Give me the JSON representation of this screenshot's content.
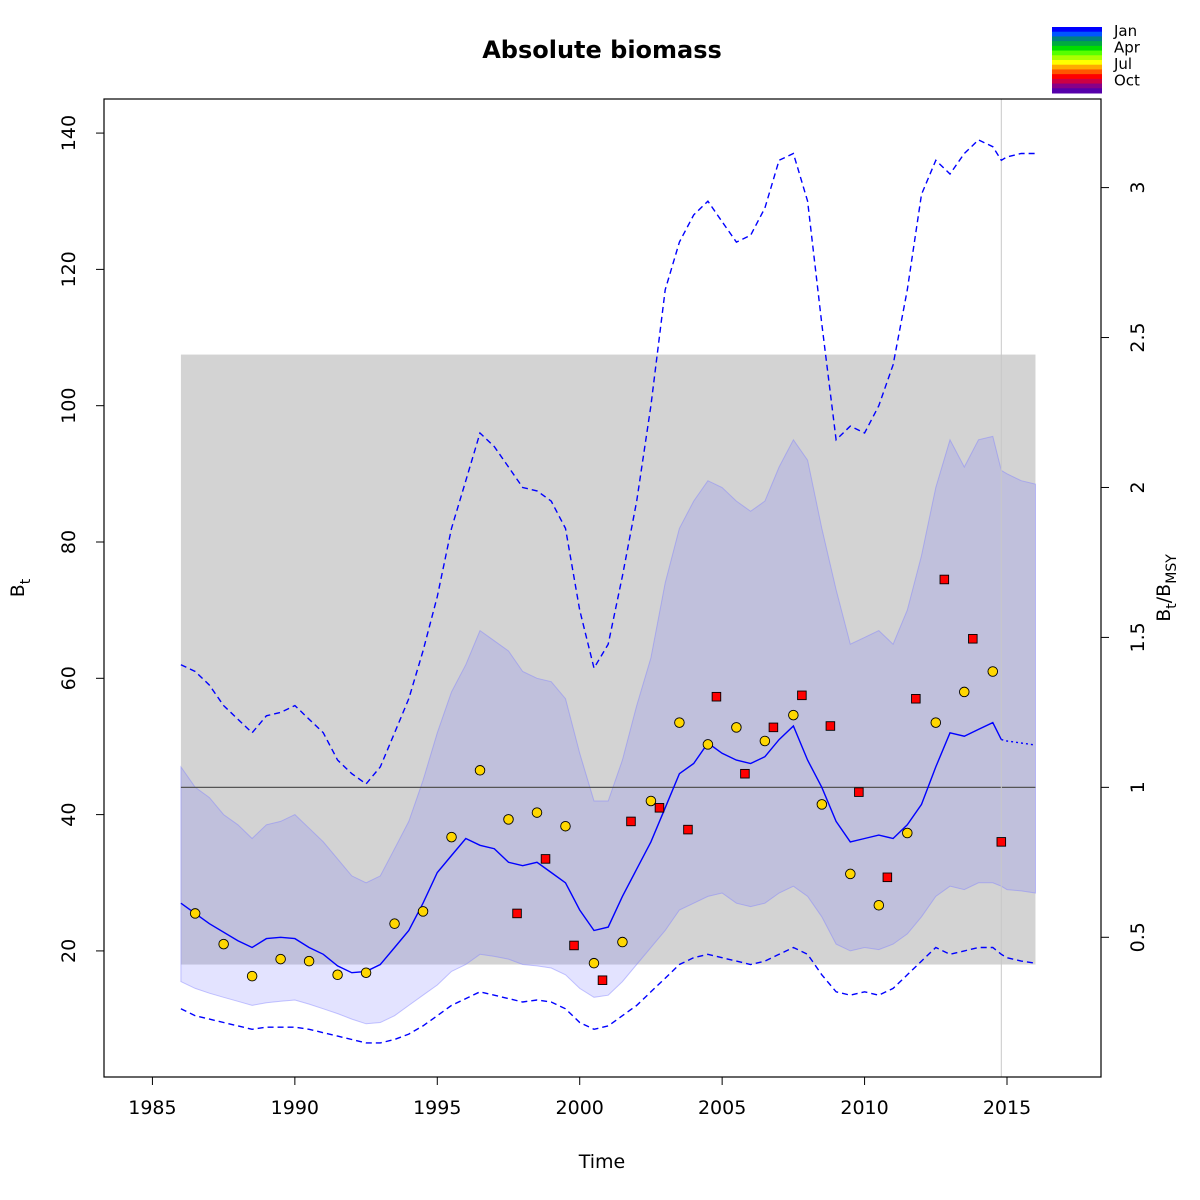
{
  "chart_data": {
    "type": "line",
    "title": "Absolute biomass",
    "xlabel": "Time",
    "ylabel_base": "B",
    "ylabel_sub": "t",
    "y2label": {
      "num": "B",
      "num_sub": "t",
      "den": "B",
      "den_sub": "MSY"
    },
    "xlim": [
      1983.3,
      2018.3
    ],
    "ylim": [
      1.5,
      145
    ],
    "xticks": [
      1985,
      1990,
      1995,
      2000,
      2005,
      2010,
      2015
    ],
    "xtick_labels": [
      "1985",
      "1990",
      "1995",
      "2000",
      "2005",
      "2010",
      "2015"
    ],
    "yticks": [
      20,
      40,
      60,
      80,
      100,
      120,
      140
    ],
    "ytick_labels": [
      "20",
      "40",
      "60",
      "80",
      "100",
      "120",
      "140"
    ],
    "bmsy": 44,
    "y2ticks": [
      0.5,
      1,
      1.5,
      2,
      2.5,
      3
    ],
    "y2tick_labels": [
      "0.5",
      "1",
      "1.5",
      "2",
      "2.5",
      "3"
    ],
    "bmsy_ci_rect": {
      "x0": 1986,
      "x1": 2016,
      "y0": 18,
      "y1": 107.5
    },
    "last_obs_time": 2014.8,
    "colors": {
      "line": "#0000ff",
      "band": "#8080ff",
      "rect": "#d3d3d3",
      "obs_circle": "#ffd700",
      "obs_square": "#ff0000"
    },
    "series": [
      {
        "name": "B_t estimate",
        "x": [
          1986,
          1987,
          1988,
          1988.5,
          1989,
          1989.5,
          1990,
          1990.5,
          1991,
          1991.5,
          1992,
          1992.5,
          1993,
          1993.5,
          1994,
          1994.5,
          1995,
          1995.5,
          1996,
          1996.5,
          1997,
          1997.5,
          1998,
          1998.5,
          1999,
          1999.5,
          2000,
          2000.5,
          2001,
          2001.5,
          2002,
          2002.5,
          2003,
          2003.5,
          2004,
          2004.5,
          2005,
          2005.5,
          2006,
          2006.5,
          2007,
          2007.5,
          2008,
          2008.5,
          2009,
          2009.5,
          2010,
          2010.5,
          2011,
          2011.5,
          2012,
          2012.5,
          2013,
          2013.5,
          2014,
          2014.5,
          2014.8
        ],
        "values": [
          27,
          24,
          21.5,
          20.5,
          21.8,
          22,
          21.8,
          20.5,
          19.5,
          17.8,
          16.8,
          17,
          18,
          20.5,
          23,
          27,
          31.5,
          34,
          36.5,
          35.5,
          35,
          33,
          32.5,
          33,
          31.5,
          30,
          26,
          23,
          23.5,
          28,
          32,
          36,
          41,
          46,
          47.5,
          50.5,
          49,
          48,
          47.5,
          48.5,
          51,
          53,
          48,
          44,
          39,
          36,
          36.5,
          37,
          36.5,
          38.5,
          41.5,
          47,
          52,
          51.5,
          52.5,
          53.5,
          51
        ]
      },
      {
        "name": "B_t projection",
        "x": [
          2014.8,
          2015,
          2015.5,
          2016
        ],
        "values": [
          51,
          50.8,
          50.5,
          50.2
        ]
      },
      {
        "name": "95% CI upper",
        "x": [
          1986,
          1986.5,
          1987,
          1987.5,
          1988,
          1988.5,
          1989,
          1989.5,
          1990,
          1990.5,
          1991,
          1991.5,
          1992,
          1992.5,
          1993,
          1993.5,
          1994,
          1994.5,
          1995,
          1995.5,
          1996,
          1996.5,
          1997,
          1997.5,
          1998,
          1998.5,
          1999,
          1999.5,
          2000,
          2000.5,
          2001,
          2001.5,
          2002,
          2002.5,
          2003,
          2003.5,
          2004,
          2004.5,
          2005,
          2005.5,
          2006,
          2006.5,
          2007,
          2007.5,
          2008,
          2008.5,
          2009,
          2009.5,
          2010,
          2010.5,
          2011,
          2011.5,
          2012,
          2012.5,
          2013,
          2013.5,
          2014,
          2014.5,
          2014.8,
          2015,
          2015.5,
          2016
        ],
        "values": [
          62,
          61,
          59,
          56,
          54,
          52,
          54.5,
          55,
          56,
          54,
          52,
          48,
          46,
          44.5,
          47,
          52,
          57,
          64,
          72,
          82,
          89,
          96,
          94,
          91,
          88,
          87.5,
          86,
          82,
          70,
          61.5,
          65,
          75,
          86,
          100,
          117,
          124,
          128,
          130,
          127,
          124,
          125,
          129,
          136,
          137,
          130,
          112,
          95,
          97,
          96,
          100,
          106,
          117,
          131,
          136,
          134,
          137,
          139,
          138,
          136,
          136.5,
          137,
          137
        ]
      },
      {
        "name": "95% CI lower",
        "x": [
          1986,
          1986.5,
          1987,
          1987.5,
          1988,
          1988.5,
          1989,
          1989.5,
          1990,
          1990.5,
          1991,
          1991.5,
          1992,
          1992.5,
          1993,
          1993.5,
          1994,
          1994.5,
          1995,
          1995.5,
          1996,
          1996.5,
          1997,
          1997.5,
          1998,
          1998.5,
          1999,
          1999.5,
          2000,
          2000.5,
          2001,
          2001.5,
          2002,
          2002.5,
          2003,
          2003.5,
          2004,
          2004.5,
          2005,
          2005.5,
          2006,
          2006.5,
          2007,
          2007.5,
          2008,
          2008.5,
          2009,
          2009.5,
          2010,
          2010.5,
          2011,
          2011.5,
          2012,
          2012.5,
          2013,
          2013.5,
          2014,
          2014.5,
          2014.8,
          2015,
          2015.5,
          2016
        ],
        "values": [
          11.5,
          10.5,
          10,
          9.5,
          9,
          8.5,
          8.8,
          8.8,
          8.8,
          8.5,
          8,
          7.5,
          7,
          6.5,
          6.5,
          7,
          7.8,
          9,
          10.5,
          12,
          13,
          14,
          13.5,
          13,
          12.5,
          12.8,
          12.5,
          11.5,
          9.5,
          8.5,
          9,
          10.5,
          12,
          14,
          16,
          18,
          19,
          19.5,
          19,
          18.5,
          18,
          18.5,
          19.5,
          20.5,
          19.5,
          16.5,
          14,
          13.5,
          14,
          13.5,
          14.5,
          16.5,
          18.5,
          20.5,
          19.5,
          20,
          20.5,
          20.5,
          19.5,
          19,
          18.5,
          18.2
        ]
      }
    ],
    "band": {
      "name": "CI band",
      "x": [
        1986,
        1986.5,
        1987,
        1987.5,
        1988,
        1988.5,
        1989,
        1989.5,
        1990,
        1990.5,
        1991,
        1991.5,
        1992,
        1992.5,
        1993,
        1993.5,
        1994,
        1994.5,
        1995,
        1995.5,
        1996,
        1996.5,
        1997,
        1997.5,
        1998,
        1998.5,
        1999,
        1999.5,
        2000,
        2000.5,
        2001,
        2001.5,
        2002,
        2002.5,
        2003,
        2003.5,
        2004,
        2004.5,
        2005,
        2005.5,
        2006,
        2006.5,
        2007,
        2007.5,
        2008,
        2008.5,
        2009,
        2009.5,
        2010,
        2010.5,
        2011,
        2011.5,
        2012,
        2012.5,
        2013,
        2013.5,
        2014,
        2014.5,
        2014.8,
        2015,
        2015.5,
        2016
      ],
      "upper": [
        47,
        44,
        42.5,
        40,
        38.5,
        36.5,
        38.5,
        39,
        40,
        38,
        36,
        33.5,
        31,
        30,
        31,
        35,
        39,
        45,
        52,
        58,
        62,
        67,
        65.5,
        64,
        61,
        60,
        59.5,
        57,
        49,
        42,
        42,
        48,
        56,
        63,
        74,
        82,
        86,
        89,
        88,
        86,
        84.5,
        86,
        91,
        95,
        92,
        82,
        73,
        65,
        66,
        67,
        65,
        70,
        78,
        88,
        95,
        91,
        95,
        95.5,
        90.5,
        90,
        89,
        88.5
      ],
      "lower": [
        15.5,
        14.5,
        13.8,
        13.2,
        12.6,
        12,
        12.4,
        12.6,
        12.8,
        12.2,
        11.5,
        10.8,
        10,
        9.3,
        9.5,
        10.5,
        12,
        13.5,
        15,
        17,
        18,
        19.5,
        19.2,
        18.8,
        18,
        17.8,
        17.5,
        16.5,
        14.5,
        13.2,
        13.5,
        15.5,
        18,
        20.5,
        23,
        26,
        27,
        28,
        28.5,
        27,
        26.5,
        27,
        28.5,
        29.5,
        28,
        25,
        21,
        20,
        20.5,
        20.2,
        21,
        22.5,
        25,
        28,
        29.5,
        29,
        30,
        30,
        29.5,
        29,
        28.8,
        28.5
      ]
    },
    "obs_index1": {
      "name": "Index 1",
      "marker": "circle",
      "x": [
        1986.5,
        1987.5,
        1988.5,
        1989.5,
        1990.5,
        1991.5,
        1992.5,
        1993.5,
        1994.5,
        1995.5,
        1996.5,
        1997.5,
        1998.5,
        1999.5,
        2000.5,
        2001.5,
        2002.5,
        2003.5,
        2004.5,
        2005.5,
        2006.5,
        2007.5,
        2008.5,
        2009.5,
        2010.5,
        2011.5,
        2012.5,
        2013.5,
        2014.5
      ],
      "values": [
        25.5,
        21,
        16.3,
        18.8,
        18.5,
        16.5,
        16.8,
        24,
        25.8,
        36.7,
        46.5,
        39.3,
        40.3,
        38.3,
        18.2,
        21.3,
        42,
        53.5,
        50.3,
        52.8,
        50.8,
        54.6,
        41.5,
        31.3,
        26.7,
        37.3,
        53.5,
        58,
        61
      ]
    },
    "obs_index2": {
      "name": "Index 2",
      "marker": "square",
      "x": [
        1997.8,
        1998.8,
        1999.8,
        2000.8,
        2001.8,
        2002.8,
        2003.8,
        2004.8,
        2005.8,
        2006.8,
        2007.8,
        2008.8,
        2009.8,
        2010.8,
        2011.8,
        2012.8,
        2013.8,
        2014.8
      ],
      "values": [
        25.5,
        33.5,
        20.8,
        15.7,
        39,
        41,
        37.8,
        57.3,
        46,
        52.8,
        57.5,
        53,
        43.3,
        30.8,
        57,
        74.5,
        65.8,
        36
      ]
    },
    "legend": {
      "position": "top-right",
      "labels": [
        "Jan",
        "Apr",
        "Jul",
        "Oct"
      ],
      "colors": [
        "#0000ff",
        "#0055ff",
        "#008080",
        "#00aa40",
        "#00dd00",
        "#55ff00",
        "#aaff00",
        "#ffff00",
        "#ffaa00",
        "#ff5500",
        "#ff0000",
        "#cc0044",
        "#880088",
        "#5500aa"
      ]
    }
  }
}
